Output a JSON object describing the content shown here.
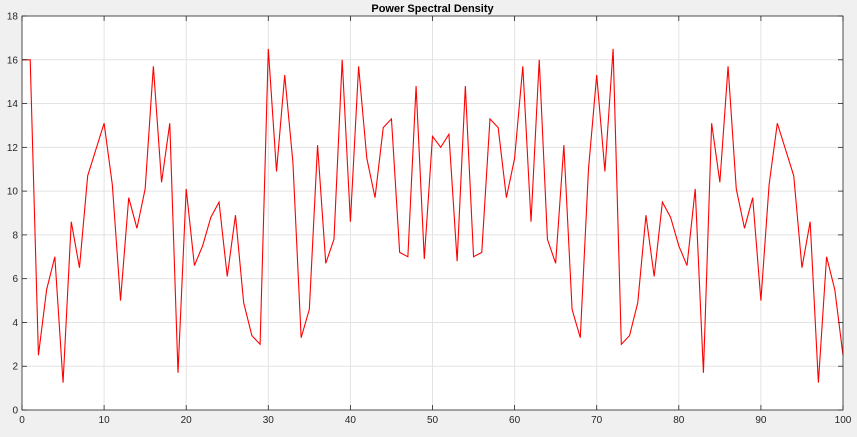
{
  "chart_data": {
    "type": "line",
    "title": "Power Spectral Density",
    "xlabel": "",
    "ylabel": "",
    "xlim": [
      0,
      100
    ],
    "ylim": [
      0,
      18
    ],
    "xticks": [
      0,
      10,
      20,
      30,
      40,
      50,
      60,
      70,
      80,
      90,
      100
    ],
    "yticks": [
      0,
      2,
      4,
      6,
      8,
      10,
      12,
      14,
      16,
      18
    ],
    "grid": true,
    "colors": {
      "series": "#ff0000",
      "grid": "#e3e3e3",
      "axes_bg": "#ffffff",
      "figure_bg": "#f0f0f0",
      "axis": "#262626"
    },
    "series": [
      {
        "x": [
          0,
          1,
          2,
          3,
          4,
          5,
          6,
          7,
          8,
          9,
          10,
          11,
          12,
          13,
          14,
          15,
          16,
          17,
          18,
          19,
          20,
          21,
          22,
          23,
          24,
          25,
          26,
          27,
          28,
          29,
          30,
          31,
          32,
          33,
          34,
          35,
          36,
          37,
          38,
          39,
          40,
          41,
          42,
          43,
          44,
          45,
          46,
          47,
          48,
          49,
          50,
          51,
          52,
          53,
          54,
          55,
          56,
          57,
          58,
          59,
          60,
          61,
          62,
          63,
          64,
          65,
          66,
          67,
          68,
          69,
          70,
          71,
          72,
          73,
          74,
          75,
          76,
          77,
          78,
          79,
          80,
          81,
          82,
          83,
          84,
          85,
          86,
          87,
          88,
          89,
          90,
          91,
          92,
          93,
          94,
          95,
          96,
          97,
          98,
          99,
          100
        ],
        "values": [
          16.0,
          16.0,
          2.5,
          5.5,
          7.0,
          1.25,
          8.6,
          6.5,
          10.7,
          11.9,
          13.1,
          10.3,
          5.0,
          9.7,
          8.3,
          10.1,
          15.7,
          10.4,
          13.1,
          1.7,
          10.1,
          6.6,
          7.5,
          8.8,
          9.5,
          6.1,
          8.9,
          4.9,
          3.4,
          3.0,
          16.5,
          10.9,
          15.3,
          11.3,
          3.3,
          4.6,
          12.1,
          6.7,
          7.8,
          16.0,
          8.6,
          15.7,
          11.5,
          9.7,
          12.9,
          13.3,
          7.2,
          7.0,
          14.8,
          6.9,
          12.5,
          12.0,
          12.6,
          6.8,
          14.8,
          7.0,
          7.2,
          13.3,
          12.9,
          9.7,
          11.5,
          15.7,
          8.6,
          16.0,
          7.8,
          6.7,
          12.1,
          4.6,
          3.3,
          11.0,
          15.3,
          10.9,
          16.5,
          3.0,
          3.4,
          4.9,
          8.9,
          6.1,
          9.5,
          8.8,
          7.5,
          6.6,
          10.1,
          1.7,
          13.1,
          10.4,
          15.7,
          10.1,
          8.3,
          9.7,
          5.0,
          10.3,
          13.1,
          11.9,
          10.7,
          6.5,
          8.6,
          1.25,
          7.0,
          5.5,
          2.5
        ]
      }
    ]
  }
}
